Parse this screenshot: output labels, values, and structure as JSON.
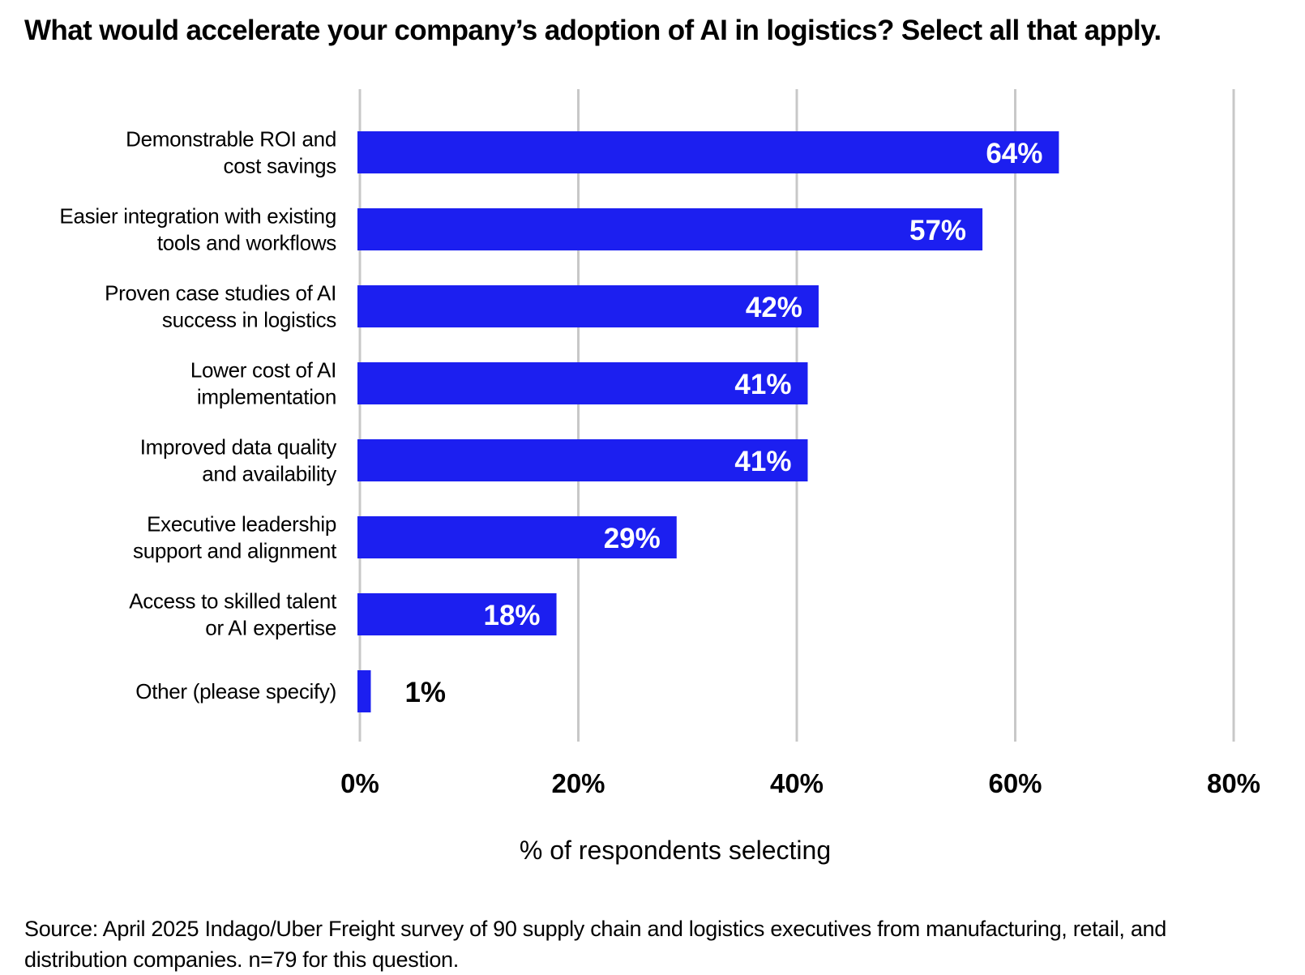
{
  "title": "What would accelerate your company’s adoption of AI in logistics? Select all that apply.",
  "source_lines": [
    "Source: April 2025 Indago/Uber Freight survey of 90 supply chain and logistics executives from manufacturing, retail, and",
    "distribution companies. n=79 for this question."
  ],
  "colors": {
    "bar": "#1c1ff0",
    "grid": "#c8c8c8",
    "inside_label": "#ffffff",
    "outside_label": "#000000"
  },
  "chart_data": {
    "type": "bar",
    "orientation": "horizontal",
    "categories": [
      [
        "Demonstrable ROI and",
        "cost savings"
      ],
      [
        "Easier integration with existing",
        "tools and workflows"
      ],
      [
        "Proven case studies of AI",
        "success in logistics"
      ],
      [
        "Lower cost of AI",
        "implementation"
      ],
      [
        "Improved data quality",
        "and availability"
      ],
      [
        "Executive leadership",
        "support and alignment"
      ],
      [
        "Access to skilled talent",
        "or AI expertise"
      ],
      [
        "Other (please specify)"
      ]
    ],
    "values": [
      64,
      57,
      42,
      41,
      41,
      29,
      18,
      1
    ],
    "value_labels": [
      "64%",
      "57%",
      "42%",
      "41%",
      "41%",
      "29%",
      "18%",
      "1%"
    ],
    "xlim": [
      0,
      80
    ],
    "xticks": [
      0,
      20,
      40,
      60,
      80
    ],
    "xtick_labels": [
      "0%",
      "20%",
      "40%",
      "60%",
      "80%"
    ],
    "xlabel": "% of respondents selecting",
    "ylabel": "",
    "grid": "vertical",
    "legend": "none"
  }
}
